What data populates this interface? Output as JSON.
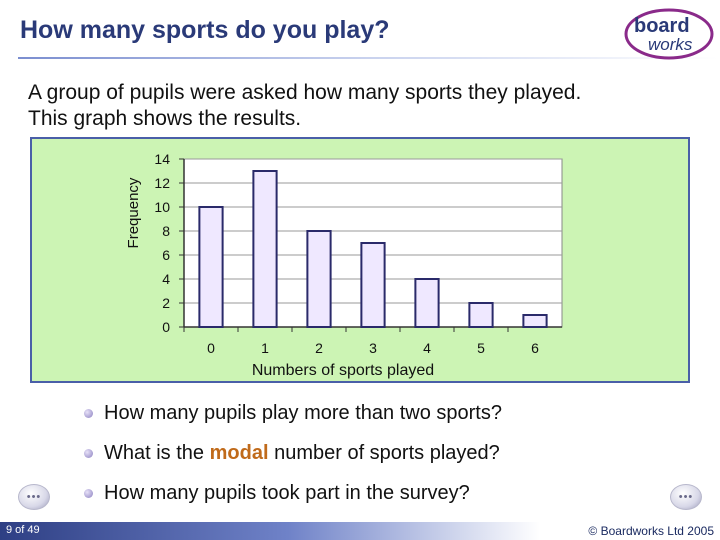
{
  "header": {
    "title": "How many sports do you play?",
    "logo_top": "board",
    "logo_bottom": "works"
  },
  "intro": {
    "line1": "A group of pupils were asked how many sports they played.",
    "line2": "This graph shows the results."
  },
  "chart_data": {
    "type": "bar",
    "categories": [
      "0",
      "1",
      "2",
      "3",
      "4",
      "5",
      "6"
    ],
    "values": [
      10,
      13,
      8,
      7,
      4,
      2,
      1
    ],
    "title": "",
    "xlabel": "Numbers of sports played",
    "ylabel": "Frequency",
    "ylim": [
      0,
      14
    ],
    "yticks": [
      "0",
      "2",
      "4",
      "6",
      "8",
      "10",
      "12",
      "14"
    ],
    "grid": true,
    "bar_color": "#efe8ff",
    "bar_edge": "#2a2a6a",
    "panel_color": "#ccf4b4"
  },
  "questions": {
    "q1": "How many pupils play more than two sports?",
    "q2_before": "What is the ",
    "q2_keyword": "modal",
    "q2_after": " number of sports played?",
    "q3": "How many pupils took part in the survey?"
  },
  "footer": {
    "page": "9 of 49",
    "copyright": "© Boardworks Ltd 2005",
    "prev_label": "•••",
    "next_label": "•••"
  }
}
